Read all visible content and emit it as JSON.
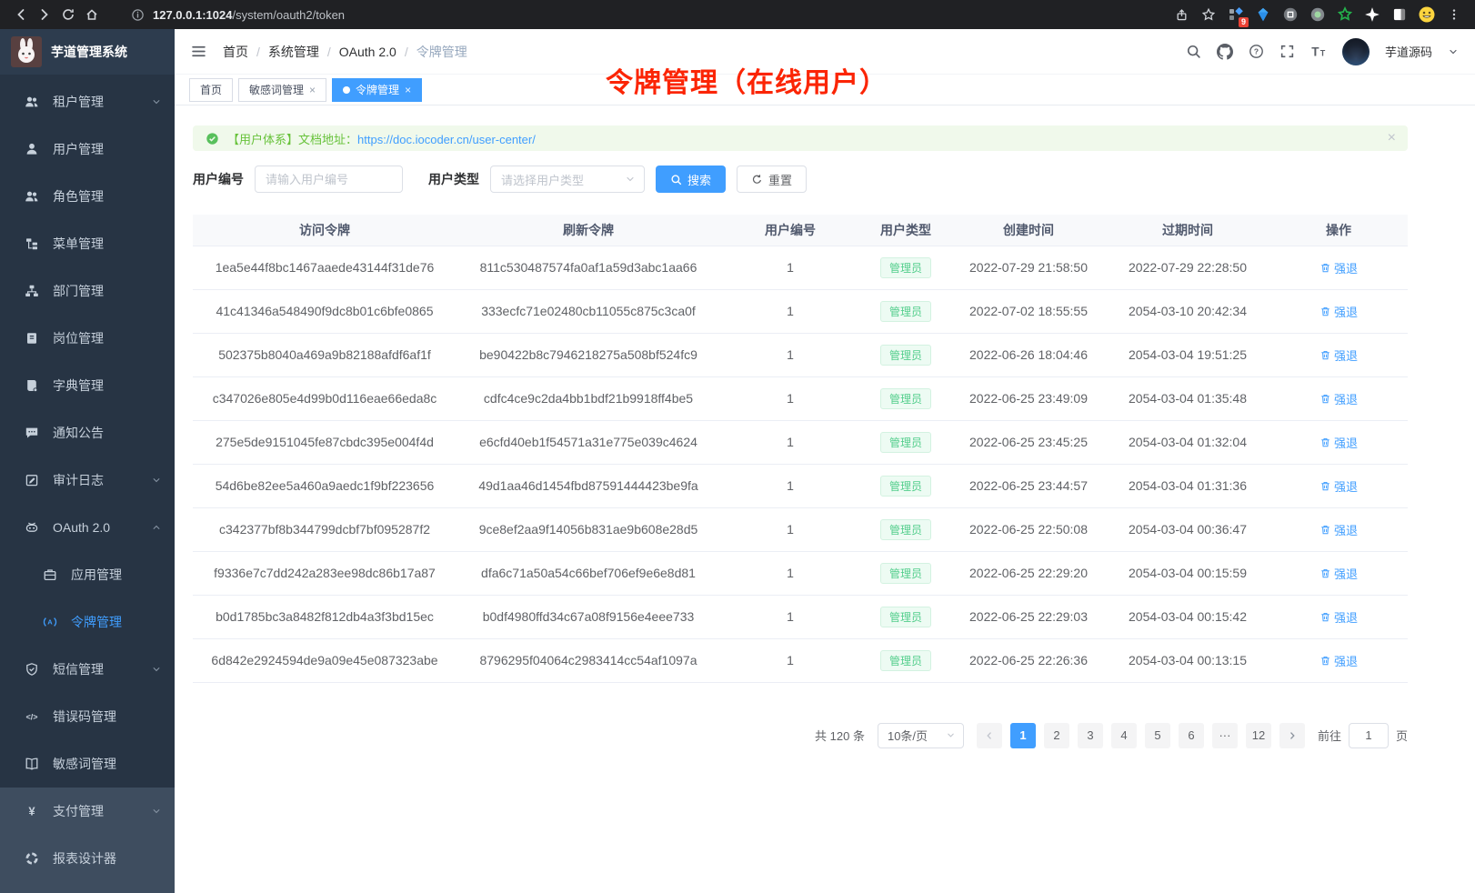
{
  "browser": {
    "url_host": "127.0.0.1:1024",
    "url_path": "/system/oauth2/token",
    "extension_badge": "9"
  },
  "sidebar": {
    "app_title": "芋道管理系统",
    "items": [
      {
        "id": "tenant",
        "icon": "users",
        "label": "租户管理",
        "chevron": "down"
      },
      {
        "id": "user",
        "icon": "user",
        "label": "用户管理"
      },
      {
        "id": "role",
        "icon": "role",
        "label": "角色管理"
      },
      {
        "id": "menu",
        "icon": "menu",
        "label": "菜单管理"
      },
      {
        "id": "dept",
        "icon": "dept",
        "label": "部门管理"
      },
      {
        "id": "post",
        "icon": "post",
        "label": "岗位管理"
      },
      {
        "id": "dict",
        "icon": "dict",
        "label": "字典管理"
      },
      {
        "id": "notice",
        "icon": "notice",
        "label": "通知公告"
      },
      {
        "id": "audit",
        "icon": "audit",
        "label": "审计日志",
        "chevron": "down"
      },
      {
        "id": "oauth2",
        "icon": "oauth",
        "label": "OAuth 2.0",
        "chevron": "up"
      },
      {
        "id": "oauth2-app",
        "icon": "app",
        "label": "应用管理",
        "sub": true
      },
      {
        "id": "oauth2-token",
        "icon": "token",
        "label": "令牌管理",
        "sub": true,
        "active": true
      },
      {
        "id": "sms",
        "icon": "shield",
        "label": "短信管理",
        "chevron": "down"
      },
      {
        "id": "errcode",
        "icon": "code",
        "label": "错误码管理"
      },
      {
        "id": "sensitive",
        "icon": "book",
        "label": "敏感词管理"
      },
      {
        "id": "pay",
        "icon": "yen",
        "label": "支付管理",
        "chevron": "down",
        "section": "light"
      },
      {
        "id": "report",
        "icon": "pie",
        "label": "报表设计器",
        "section": "light"
      }
    ]
  },
  "header": {
    "breadcrumb": [
      "首页",
      "系统管理",
      "OAuth 2.0",
      "令牌管理"
    ],
    "username": "芋道源码"
  },
  "tabs": [
    {
      "label": "首页"
    },
    {
      "label": "敏感词管理",
      "closable": true
    },
    {
      "label": "令牌管理",
      "closable": true,
      "active": true
    }
  ],
  "overlay_title": "令牌管理（在线用户）",
  "alert": {
    "text": "【用户体系】文档地址：",
    "link": "https://doc.iocoder.cn/user-center/",
    "close": "×"
  },
  "filters": {
    "user_id_label": "用户编号",
    "user_id_placeholder": "请输入用户编号",
    "user_type_label": "用户类型",
    "user_type_placeholder": "请选择用户类型",
    "search_label": "搜索",
    "reset_label": "重置"
  },
  "table": {
    "columns": [
      "访问令牌",
      "刷新令牌",
      "用户编号",
      "用户类型",
      "创建时间",
      "过期时间",
      "操作"
    ],
    "action_label": "强退",
    "rows": [
      {
        "access": "1ea5e44f8bc1467aaede43144f31de76",
        "refresh": "811c530487574fa0af1a59d3abc1aa66",
        "user_id": "1",
        "user_type": "管理员",
        "created": "2022-07-29 21:58:50",
        "expires": "2022-07-29 22:28:50"
      },
      {
        "access": "41c41346a548490f9dc8b01c6bfe0865",
        "refresh": "333ecfc71e02480cb11055c875c3ca0f",
        "user_id": "1",
        "user_type": "管理员",
        "created": "2022-07-02 18:55:55",
        "expires": "2054-03-10 20:42:34"
      },
      {
        "access": "502375b8040a469a9b82188afdf6af1f",
        "refresh": "be90422b8c7946218275a508bf524fc9",
        "user_id": "1",
        "user_type": "管理员",
        "created": "2022-06-26 18:04:46",
        "expires": "2054-03-04 19:51:25"
      },
      {
        "access": "c347026e805e4d99b0d116eae66eda8c",
        "refresh": "cdfc4ce9c2da4bb1bdf21b9918ff4be5",
        "user_id": "1",
        "user_type": "管理员",
        "created": "2022-06-25 23:49:09",
        "expires": "2054-03-04 01:35:48"
      },
      {
        "access": "275e5de9151045fe87cbdc395e004f4d",
        "refresh": "e6cfd40eb1f54571a31e775e039c4624",
        "user_id": "1",
        "user_type": "管理员",
        "created": "2022-06-25 23:45:25",
        "expires": "2054-03-04 01:32:04"
      },
      {
        "access": "54d6be82ee5a460a9aedc1f9bf223656",
        "refresh": "49d1aa46d1454fbd87591444423be9fa",
        "user_id": "1",
        "user_type": "管理员",
        "created": "2022-06-25 23:44:57",
        "expires": "2054-03-04 01:31:36"
      },
      {
        "access": "c342377bf8b344799dcbf7bf095287f2",
        "refresh": "9ce8ef2aa9f14056b831ae9b608e28d5",
        "user_id": "1",
        "user_type": "管理员",
        "created": "2022-06-25 22:50:08",
        "expires": "2054-03-04 00:36:47"
      },
      {
        "access": "f9336e7c7dd242a283ee98dc86b17a87",
        "refresh": "dfa6c71a50a54c66bef706ef9e6e8d81",
        "user_id": "1",
        "user_type": "管理员",
        "created": "2022-06-25 22:29:20",
        "expires": "2054-03-04 00:15:59"
      },
      {
        "access": "b0d1785bc3a8482f812db4a3f3bd15ec",
        "refresh": "b0df4980ffd34c67a08f9156e4eee733",
        "user_id": "1",
        "user_type": "管理员",
        "created": "2022-06-25 22:29:03",
        "expires": "2054-03-04 00:15:42"
      },
      {
        "access": "6d842e2924594de9a09e45e087323abe",
        "refresh": "8796295f04064c2983414cc54af1097a",
        "user_id": "1",
        "user_type": "管理员",
        "created": "2022-06-25 22:26:36",
        "expires": "2054-03-04 00:13:15"
      }
    ]
  },
  "pagination": {
    "total": "共 120 条",
    "page_size": "10条/页",
    "pages": [
      "1",
      "2",
      "3",
      "4",
      "5",
      "6",
      "···",
      "12"
    ],
    "active_page": "1",
    "goto_label": "前往",
    "goto_value": "1",
    "goto_suffix": "页"
  }
}
